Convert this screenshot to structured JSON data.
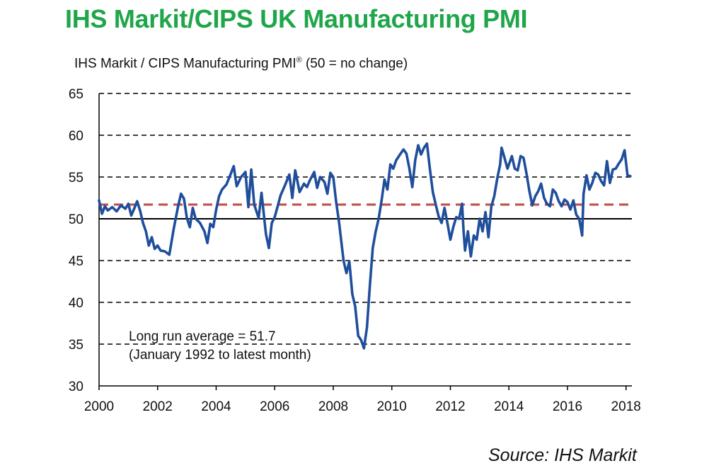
{
  "title": "IHS Markit/CIPS UK Manufacturing PMI",
  "source": "Source: IHS Markit",
  "colors": {
    "title": "#1FA64A",
    "series": "#1F4E9B",
    "average": "#C0504D",
    "grid": "#000000"
  },
  "chart_data": {
    "type": "line",
    "ylabel": "IHS Markit / CIPS Manufacturing PMI",
    "ylabel_mark": "®",
    "ylabel_suffix": "(50 = no change)",
    "xlim": [
      2000,
      2018.2
    ],
    "ylim": [
      30,
      65
    ],
    "x_ticks": [
      "2000",
      "2002",
      "2004",
      "2006",
      "2008",
      "2010",
      "2012",
      "2014",
      "2016",
      "2018"
    ],
    "y_ticks": [
      "30",
      "35",
      "40",
      "45",
      "50",
      "55",
      "60",
      "65"
    ],
    "grid": "horizontal dashed",
    "reference_lines": [
      {
        "y": 50,
        "style": "solid"
      },
      {
        "y": 51.7,
        "style": "dashed",
        "label": "Long run average = 51.7"
      }
    ],
    "annotation": {
      "line1": "Long run average = 51.7",
      "line2": "(January 1992 to latest month)"
    },
    "series": [
      {
        "points": [
          [
            2000.0,
            52.2
          ],
          [
            2000.1,
            50.6
          ],
          [
            2000.2,
            51.5
          ],
          [
            2000.3,
            51.0
          ],
          [
            2000.45,
            51.4
          ],
          [
            2000.6,
            50.9
          ],
          [
            2000.75,
            51.6
          ],
          [
            2000.9,
            51.2
          ],
          [
            2001.0,
            51.8
          ],
          [
            2001.1,
            50.4
          ],
          [
            2001.2,
            51.2
          ],
          [
            2001.3,
            52.1
          ],
          [
            2001.4,
            51.0
          ],
          [
            2001.5,
            49.5
          ],
          [
            2001.6,
            48.5
          ],
          [
            2001.7,
            46.8
          ],
          [
            2001.8,
            47.8
          ],
          [
            2001.9,
            46.4
          ],
          [
            2002.0,
            46.8
          ],
          [
            2002.1,
            46.2
          ],
          [
            2002.25,
            46.1
          ],
          [
            2002.4,
            45.7
          ],
          [
            2002.55,
            48.8
          ],
          [
            2002.7,
            51.5
          ],
          [
            2002.8,
            53.0
          ],
          [
            2002.9,
            52.4
          ],
          [
            2003.0,
            50.1
          ],
          [
            2003.1,
            49.0
          ],
          [
            2003.2,
            51.3
          ],
          [
            2003.3,
            50.0
          ],
          [
            2003.45,
            49.5
          ],
          [
            2003.6,
            48.5
          ],
          [
            2003.7,
            47.1
          ],
          [
            2003.8,
            49.4
          ],
          [
            2003.9,
            49.0
          ],
          [
            2004.0,
            51.1
          ],
          [
            2004.1,
            52.7
          ],
          [
            2004.2,
            53.5
          ],
          [
            2004.35,
            54.1
          ],
          [
            2004.5,
            55.4
          ],
          [
            2004.6,
            56.3
          ],
          [
            2004.7,
            53.9
          ],
          [
            2004.85,
            55.0
          ],
          [
            2005.0,
            55.6
          ],
          [
            2005.1,
            51.4
          ],
          [
            2005.2,
            55.9
          ],
          [
            2005.3,
            51.7
          ],
          [
            2005.45,
            50.1
          ],
          [
            2005.55,
            53.1
          ],
          [
            2005.7,
            48.2
          ],
          [
            2005.8,
            46.5
          ],
          [
            2005.9,
            49.5
          ],
          [
            2006.0,
            50.2
          ],
          [
            2006.1,
            51.5
          ],
          [
            2006.2,
            52.8
          ],
          [
            2006.35,
            54.0
          ],
          [
            2006.5,
            55.3
          ],
          [
            2006.6,
            52.5
          ],
          [
            2006.7,
            55.8
          ],
          [
            2006.85,
            53.2
          ],
          [
            2007.0,
            54.2
          ],
          [
            2007.1,
            53.8
          ],
          [
            2007.2,
            54.6
          ],
          [
            2007.35,
            55.6
          ],
          [
            2007.45,
            53.7
          ],
          [
            2007.55,
            55.0
          ],
          [
            2007.7,
            54.4
          ],
          [
            2007.8,
            53.0
          ],
          [
            2007.9,
            55.5
          ],
          [
            2008.0,
            55.0
          ],
          [
            2008.1,
            52.0
          ],
          [
            2008.2,
            49.5
          ],
          [
            2008.35,
            45.0
          ],
          [
            2008.45,
            43.5
          ],
          [
            2008.55,
            44.9
          ],
          [
            2008.65,
            41.0
          ],
          [
            2008.75,
            39.5
          ],
          [
            2008.85,
            36.0
          ],
          [
            2008.95,
            35.5
          ],
          [
            2009.05,
            34.5
          ],
          [
            2009.15,
            37.0
          ],
          [
            2009.25,
            42.0
          ],
          [
            2009.35,
            46.5
          ],
          [
            2009.45,
            48.5
          ],
          [
            2009.55,
            50.0
          ],
          [
            2009.65,
            52.2
          ],
          [
            2009.75,
            54.7
          ],
          [
            2009.85,
            53.5
          ],
          [
            2009.95,
            56.5
          ],
          [
            2010.05,
            56.0
          ],
          [
            2010.15,
            57.0
          ],
          [
            2010.3,
            57.8
          ],
          [
            2010.4,
            58.3
          ],
          [
            2010.5,
            57.8
          ],
          [
            2010.6,
            56.0
          ],
          [
            2010.7,
            53.8
          ],
          [
            2010.8,
            57.0
          ],
          [
            2010.9,
            58.8
          ],
          [
            2011.0,
            57.7
          ],
          [
            2011.1,
            58.5
          ],
          [
            2011.2,
            59.0
          ],
          [
            2011.3,
            56.0
          ],
          [
            2011.4,
            53.2
          ],
          [
            2011.5,
            51.7
          ],
          [
            2011.6,
            50.3
          ],
          [
            2011.7,
            49.5
          ],
          [
            2011.8,
            51.3
          ],
          [
            2011.9,
            49.5
          ],
          [
            2012.0,
            47.5
          ],
          [
            2012.1,
            49.0
          ],
          [
            2012.2,
            50.2
          ],
          [
            2012.3,
            50.0
          ],
          [
            2012.4,
            51.8
          ],
          [
            2012.45,
            48.6
          ],
          [
            2012.5,
            46.2
          ],
          [
            2012.6,
            48.5
          ],
          [
            2012.7,
            45.5
          ],
          [
            2012.8,
            48.0
          ],
          [
            2012.9,
            47.5
          ],
          [
            2013.0,
            50.0
          ],
          [
            2013.1,
            48.5
          ],
          [
            2013.2,
            50.8
          ],
          [
            2013.3,
            47.8
          ],
          [
            2013.4,
            51.5
          ],
          [
            2013.5,
            52.7
          ],
          [
            2013.6,
            54.8
          ],
          [
            2013.7,
            56.5
          ],
          [
            2013.75,
            58.5
          ],
          [
            2013.85,
            57.3
          ],
          [
            2013.95,
            56.0
          ],
          [
            2014.1,
            57.5
          ],
          [
            2014.2,
            56.0
          ],
          [
            2014.3,
            55.8
          ],
          [
            2014.4,
            57.5
          ],
          [
            2014.5,
            57.3
          ],
          [
            2014.6,
            55.4
          ],
          [
            2014.7,
            53.3
          ],
          [
            2014.8,
            51.6
          ],
          [
            2014.9,
            52.7
          ],
          [
            2015.0,
            53.3
          ],
          [
            2015.1,
            54.2
          ],
          [
            2015.2,
            52.5
          ],
          [
            2015.3,
            51.8
          ],
          [
            2015.4,
            51.5
          ],
          [
            2015.5,
            53.5
          ],
          [
            2015.6,
            53.1
          ],
          [
            2015.7,
            52.1
          ],
          [
            2015.8,
            51.5
          ],
          [
            2015.9,
            52.3
          ],
          [
            2016.0,
            52.0
          ],
          [
            2016.1,
            51.1
          ],
          [
            2016.2,
            52.2
          ],
          [
            2016.3,
            50.5
          ],
          [
            2016.4,
            50.0
          ],
          [
            2016.5,
            48.0
          ],
          [
            2016.55,
            53.0
          ],
          [
            2016.65,
            55.2
          ],
          [
            2016.75,
            53.5
          ],
          [
            2016.85,
            54.3
          ],
          [
            2016.95,
            55.5
          ],
          [
            2017.05,
            55.3
          ],
          [
            2017.15,
            54.5
          ],
          [
            2017.25,
            54.0
          ],
          [
            2017.35,
            56.9
          ],
          [
            2017.45,
            54.3
          ],
          [
            2017.55,
            55.9
          ],
          [
            2017.65,
            56.0
          ],
          [
            2017.75,
            56.6
          ],
          [
            2017.85,
            57.1
          ],
          [
            2017.95,
            58.2
          ],
          [
            2018.05,
            55.2
          ],
          [
            2018.15,
            55.1
          ]
        ]
      }
    ]
  }
}
